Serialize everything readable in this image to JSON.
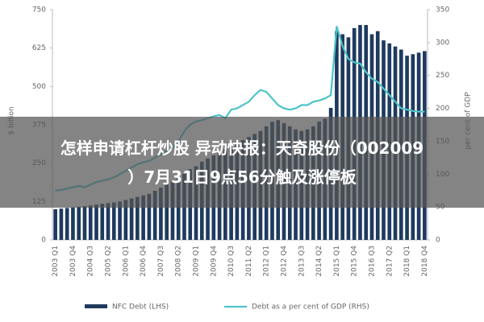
{
  "chart_data": {
    "type": "combo",
    "headline": [
      "怎样申请杠杆炒股 异动快报：天奇股份（002009",
      "）7月31日9点56分触及涨停板"
    ],
    "ylabel": "$ billion",
    "y2label": "per cent of GDP",
    "categories": [
      "2003 Q1",
      null,
      null,
      "2003 Q4",
      null,
      null,
      "2004 Q3",
      null,
      null,
      "2005 Q2",
      null,
      null,
      "2006 Q1",
      null,
      null,
      "2006 Q4",
      null,
      null,
      "2007 Q3",
      null,
      null,
      "2008 Q2",
      null,
      null,
      "2009 Q1",
      null,
      null,
      "2009 Q4",
      null,
      null,
      "2010 Q3",
      null,
      null,
      "2011 Q2",
      null,
      null,
      "2012 Q1",
      null,
      null,
      "2012 Q4",
      null,
      null,
      "2013 Q3",
      null,
      null,
      "2014 Q2",
      null,
      null,
      "2015 Q1",
      null,
      null,
      "2015 Q4",
      null,
      null,
      "2016 Q3",
      null,
      null,
      "2017 Q2",
      null,
      null,
      "2018 Q1",
      null,
      null,
      "2018 Q4"
    ],
    "series": [
      {
        "name": "NFC Debt (LHS)",
        "type": "bar",
        "color": "#1f3a5f",
        "values": [
          100,
          102,
          104,
          106,
          108,
          110,
          112,
          115,
          118,
          120,
          122,
          125,
          130,
          135,
          140,
          145,
          150,
          160,
          170,
          180,
          190,
          200,
          215,
          230,
          240,
          255,
          265,
          275,
          285,
          295,
          305,
          315,
          325,
          335,
          345,
          355,
          370,
          385,
          390,
          380,
          370,
          360,
          355,
          360,
          370,
          385,
          395,
          430,
          680,
          670,
          660,
          690,
          700,
          700,
          670,
          680,
          650,
          640,
          630,
          620,
          600,
          605,
          610,
          615
        ]
      },
      {
        "name": "Debt as a per cent of GDP (RHS)",
        "type": "line",
        "axis": "y2",
        "color": "#4fc3c8",
        "values": [
          75,
          76,
          78,
          80,
          82,
          80,
          84,
          88,
          90,
          92,
          95,
          100,
          105,
          110,
          115,
          118,
          120,
          125,
          130,
          135,
          140,
          150,
          165,
          175,
          180,
          182,
          185,
          188,
          190,
          185,
          198,
          200,
          205,
          210,
          220,
          228,
          225,
          215,
          205,
          200,
          198,
          200,
          205,
          205,
          210,
          212,
          215,
          220,
          325,
          295,
          275,
          270,
          268,
          255,
          245,
          240,
          230,
          220,
          210,
          200,
          198,
          196,
          195,
          195
        ]
      }
    ],
    "ylim": [
      0,
      750
    ],
    "yticks": [
      0,
      125,
      250,
      375,
      500,
      625,
      750
    ],
    "y2lim": [
      0,
      350
    ],
    "y2ticks": [
      0,
      50,
      100,
      150,
      200,
      250,
      300,
      350
    ]
  }
}
